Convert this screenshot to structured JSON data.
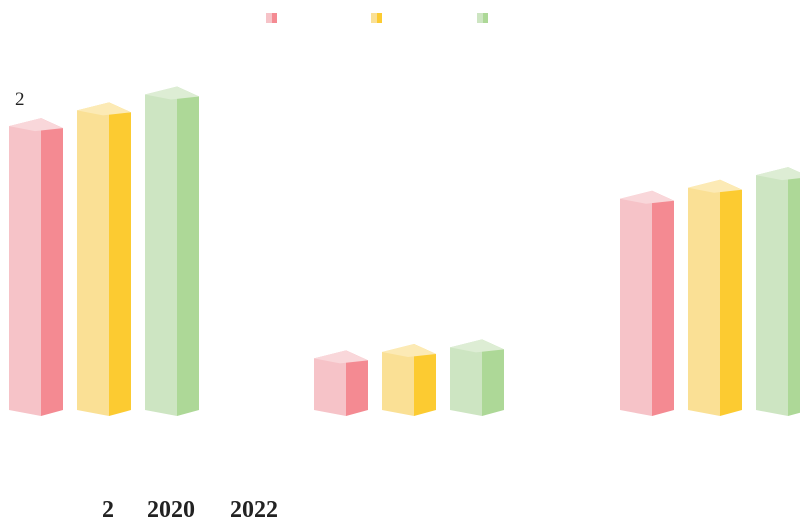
{
  "chart_data": {
    "type": "bar",
    "title": "",
    "xlabel": "",
    "ylabel": "",
    "ylim": [
      0,
      2
    ],
    "y_tick_labels": [
      "2"
    ],
    "bottom_labels": [
      "2",
      "2020",
      "2022"
    ],
    "categories": [
      "",
      "",
      ""
    ],
    "series": [
      {
        "values": [
          1.86,
          0.39,
          1.4
        ]
      },
      {
        "values": [
          1.96,
          0.43,
          1.47
        ]
      },
      {
        "values": [
          2.06,
          0.46,
          1.55
        ]
      }
    ],
    "legend": {
      "position": "top-center"
    },
    "grid": false
  },
  "colors": {
    "series": [
      {
        "front": "#F6C3C8",
        "side": "#F48A92",
        "top": "#F9D7DA"
      },
      {
        "front": "#FAE095",
        "side": "#FCCB31",
        "top": "#FCEAB5"
      },
      {
        "front": "#CDE5C2",
        "side": "#ADD897",
        "top": "#DDEDD4"
      }
    ]
  }
}
